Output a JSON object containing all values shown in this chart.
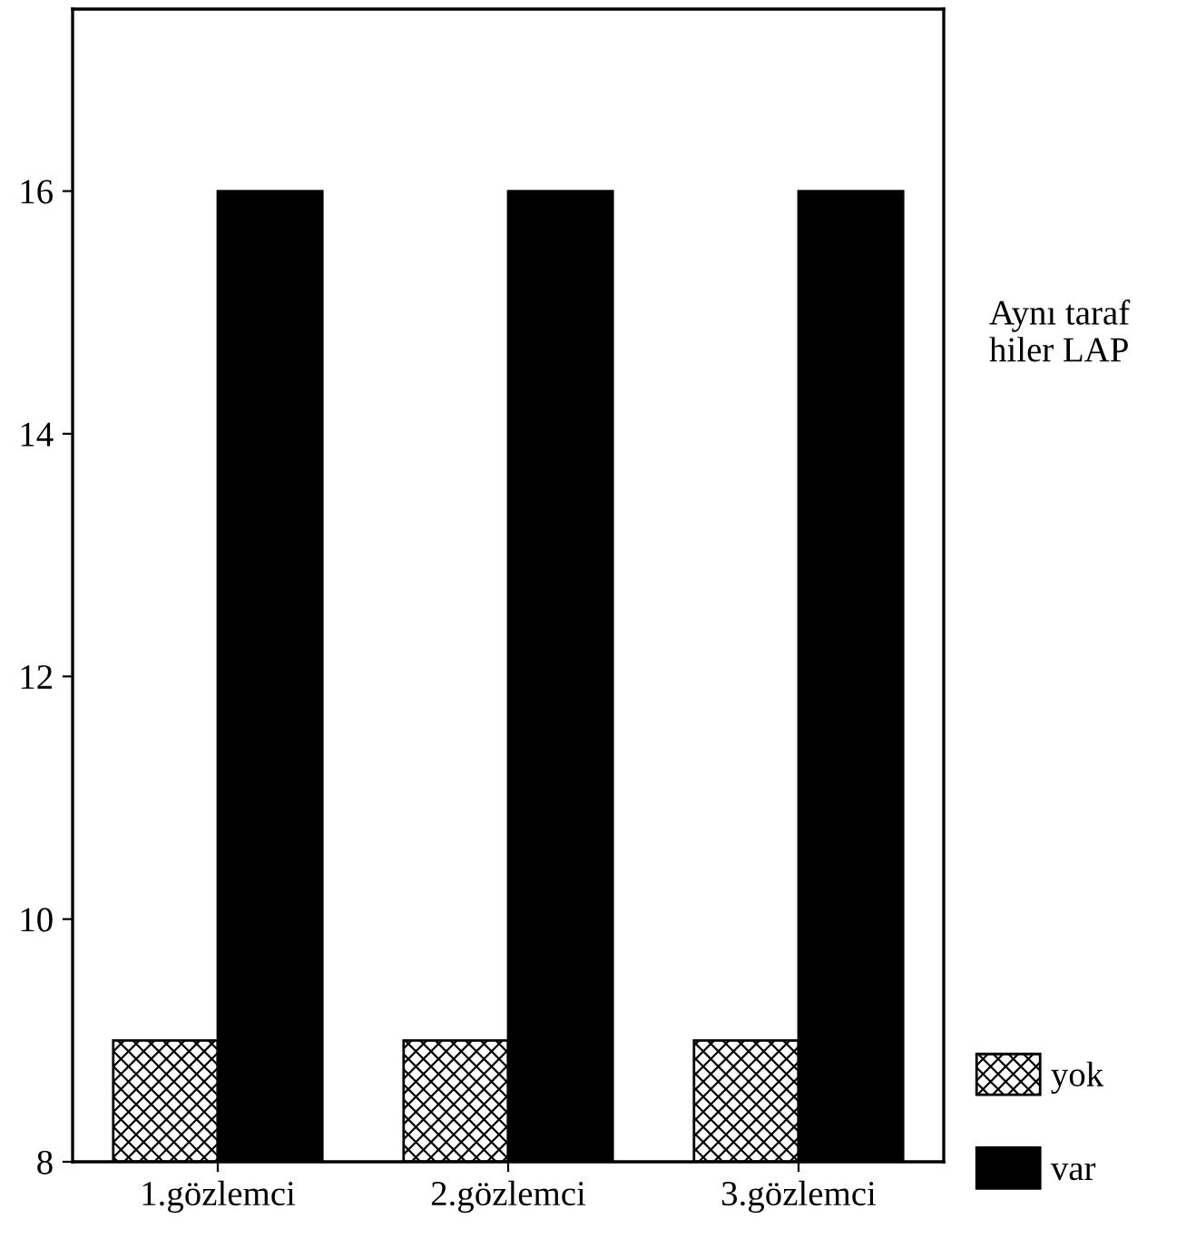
{
  "chart_data": {
    "type": "bar",
    "categories": [
      "1.gözlemci",
      "2.gözlemci",
      "3.gözlemci"
    ],
    "legend_title": "Aynı taraf\nhiler LAP",
    "series": [
      {
        "name": "yok",
        "color": "#000000",
        "values": [
          9,
          9,
          9
        ]
      },
      {
        "name": "var",
        "color": "#000000",
        "values": [
          16,
          16,
          16
        ]
      }
    ],
    "ylim": [
      8,
      17.5
    ],
    "yticks": [
      8,
      10,
      12,
      14,
      16
    ],
    "grid": false,
    "legend": "right"
  }
}
